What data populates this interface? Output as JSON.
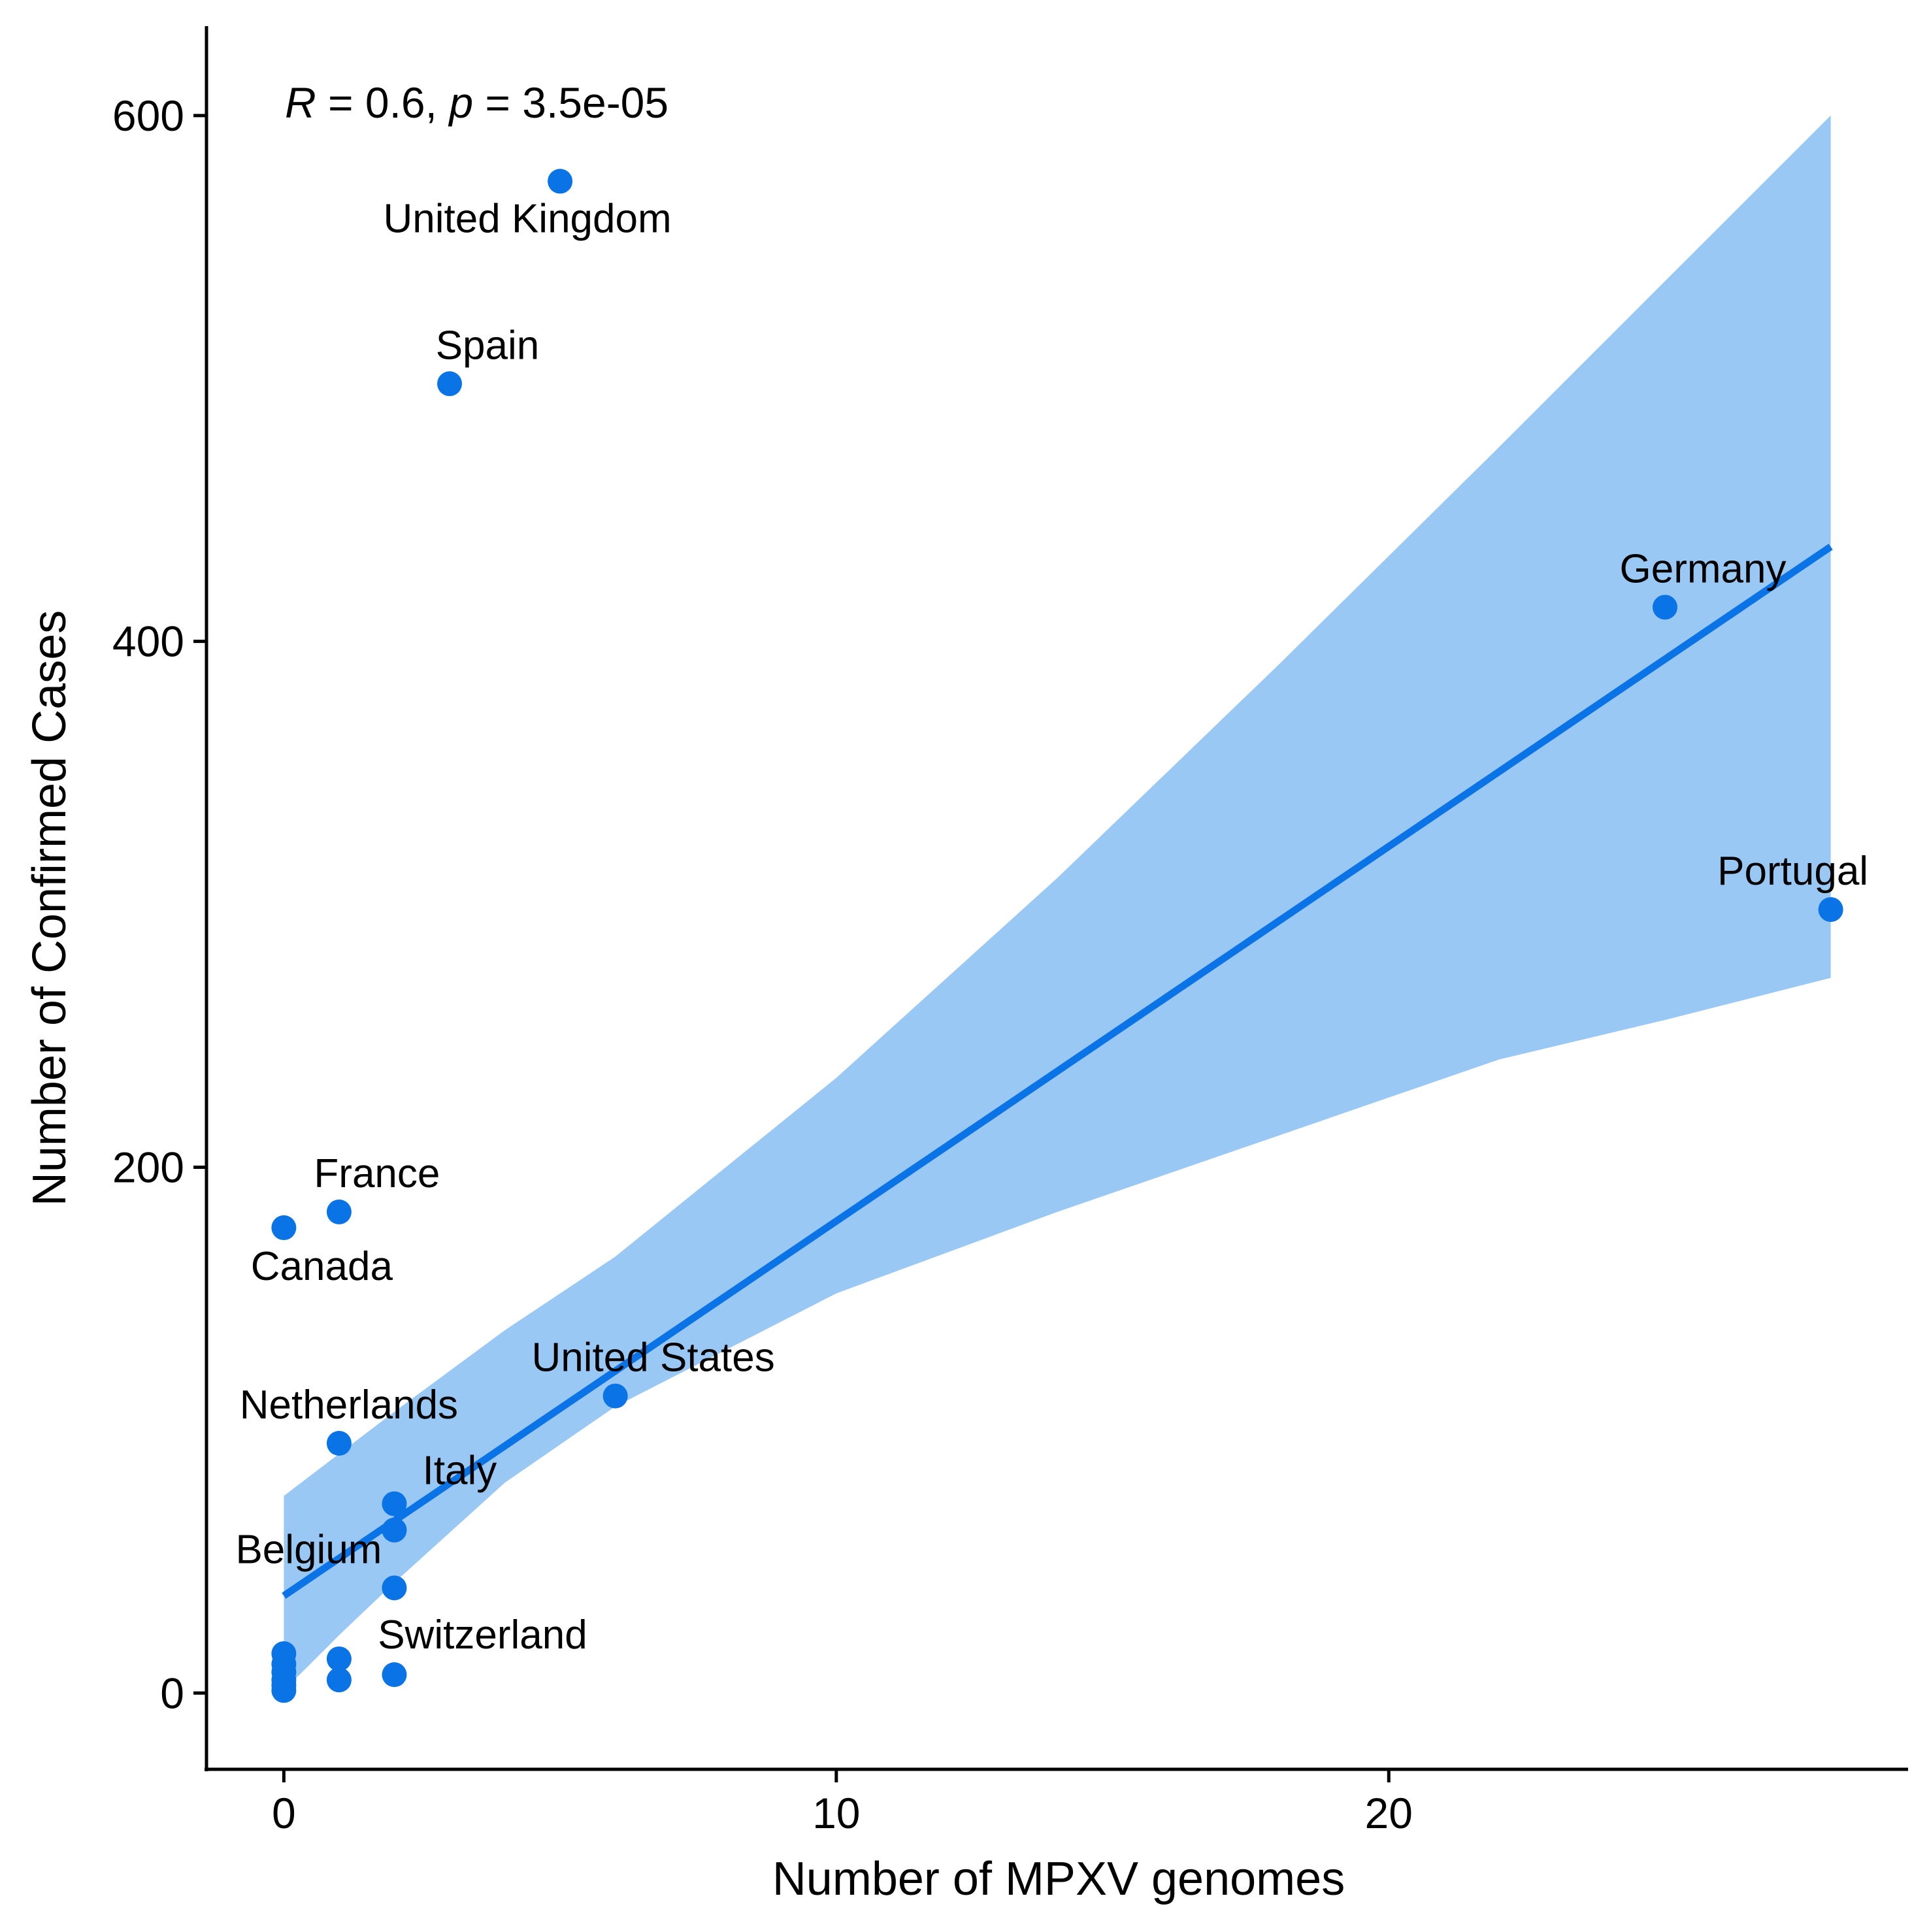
{
  "chart_data": {
    "type": "scatter",
    "xlabel": "Number of MPXV genomes",
    "ylabel": "Number of Confirmed Cases",
    "xlim": [
      -1.4,
      29.4
    ],
    "ylim": [
      -29,
      634
    ],
    "x_ticks": [
      0,
      10,
      20
    ],
    "y_ticks": [
      0,
      200,
      400,
      600
    ],
    "grid": false,
    "annotation": {
      "r_symbol": "R",
      "r_text": " = 0.6, ",
      "p_symbol": "p",
      "p_text": " = 3.5e-05"
    },
    "colors": {
      "points": "#0a73e6",
      "line": "#0a73e6",
      "ribbon": "#9ac8f5"
    },
    "points": [
      {
        "x": 5,
        "y": 575,
        "label": "United Kingdom"
      },
      {
        "x": 3,
        "y": 498,
        "label": "Spain"
      },
      {
        "x": 25,
        "y": 413,
        "label": "Germany"
      },
      {
        "x": 28,
        "y": 298,
        "label": "Portugal"
      },
      {
        "x": 1,
        "y": 183,
        "label": "France"
      },
      {
        "x": 0,
        "y": 177,
        "label": "Canada"
      },
      {
        "x": 6,
        "y": 113,
        "label": "United States"
      },
      {
        "x": 1,
        "y": 95,
        "label": "Netherlands"
      },
      {
        "x": 2,
        "y": 72,
        "label": "Italy"
      },
      {
        "x": 2,
        "y": 62,
        "label": ""
      },
      {
        "x": 2,
        "y": 40,
        "label": "Belgium"
      },
      {
        "x": 2,
        "y": 7,
        "label": "Switzerland"
      },
      {
        "x": 1,
        "y": 13,
        "label": ""
      },
      {
        "x": 1,
        "y": 5,
        "label": ""
      },
      {
        "x": 0,
        "y": 15,
        "label": ""
      },
      {
        "x": 0,
        "y": 11,
        "label": ""
      },
      {
        "x": 0,
        "y": 8,
        "label": ""
      },
      {
        "x": 0,
        "y": 5,
        "label": ""
      },
      {
        "x": 0,
        "y": 3,
        "label": ""
      },
      {
        "x": 0,
        "y": 1,
        "label": ""
      }
    ],
    "fit": {
      "x": [
        0,
        28
      ],
      "y": [
        37,
        436
      ]
    },
    "ribbon": {
      "x": [
        0,
        1,
        2,
        4,
        6,
        10,
        14,
        18,
        22,
        25,
        28
      ],
      "upper": [
        75,
        91,
        107,
        138,
        166,
        234,
        310,
        391,
        474,
        537,
        600
      ],
      "lower": [
        1,
        22,
        42,
        80,
        109,
        152,
        183,
        212,
        241,
        256,
        272
      ]
    }
  }
}
